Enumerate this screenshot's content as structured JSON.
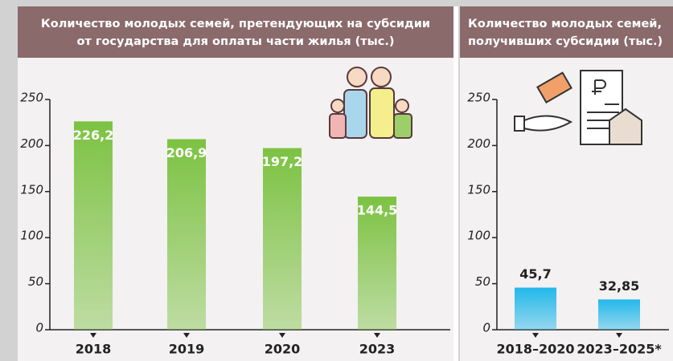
{
  "chart_data": [
    {
      "type": "bar",
      "title": [
        "Количество молодых семей, претендующих на субсидии",
        "от государства для оплаты части жилья (тыс.)"
      ],
      "categories": [
        "2018",
        "2019",
        "2020",
        "2023"
      ],
      "values": [
        226.2,
        206.9,
        197.2,
        144.5
      ],
      "value_labels": [
        "226,2",
        "206,9",
        "197,2",
        "144,5"
      ],
      "color": "#7cc242",
      "ylim": [
        0,
        250
      ],
      "yticks": [
        0,
        50,
        100,
        150,
        200,
        250
      ]
    },
    {
      "type": "bar",
      "title": [
        "Количество молодых семей,",
        "получивших субсидии (тыс.)"
      ],
      "categories": [
        "2018–2020",
        "2023–2025*"
      ],
      "values": [
        45.7,
        32.85
      ],
      "value_labels": [
        "45,7",
        "32,85"
      ],
      "color": "#22b8ea",
      "ylim": [
        0,
        250
      ],
      "yticks": [
        0,
        50,
        100,
        150,
        200,
        250
      ]
    }
  ]
}
